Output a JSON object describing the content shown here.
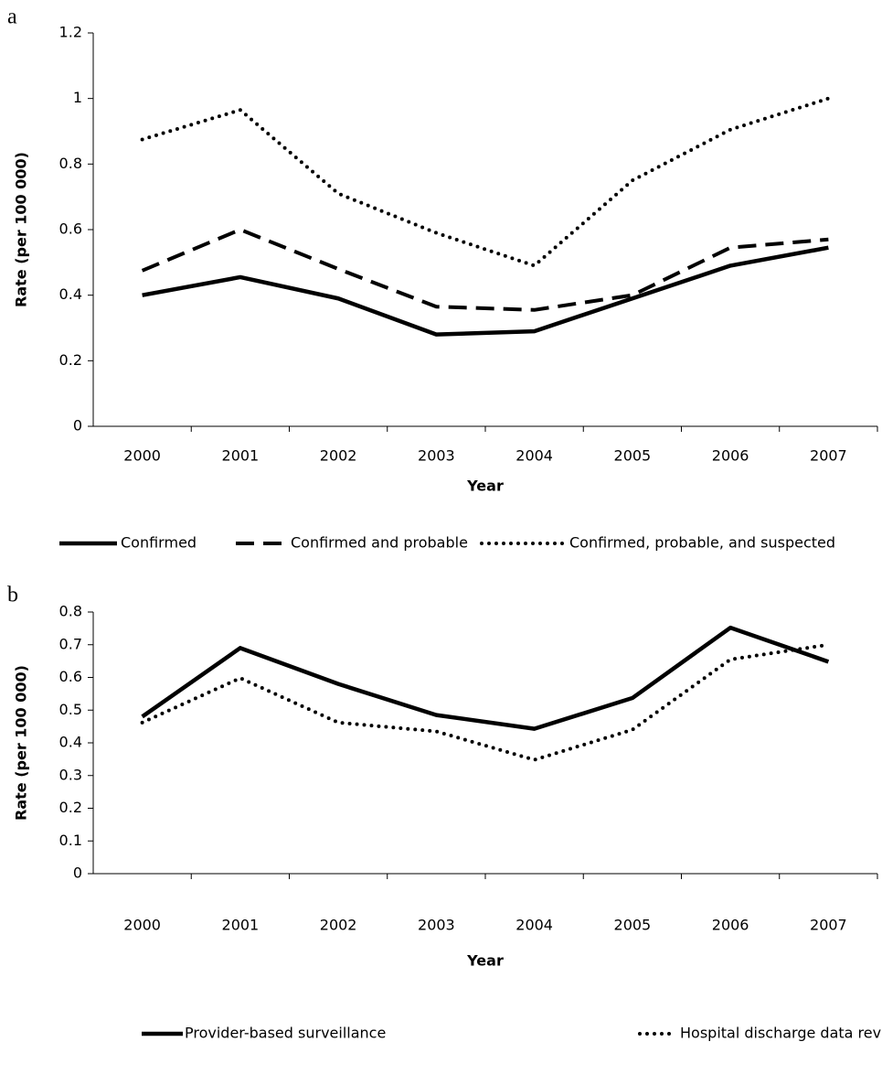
{
  "chart_data": [
    {
      "type": "line",
      "label": "a",
      "x_label": "Year",
      "y_label": "Rate (per 100 000)",
      "categories": [
        "2000",
        "2001",
        "2002",
        "2003",
        "2004",
        "2005",
        "2006",
        "2007"
      ],
      "ylim": [
        0,
        1.2
      ],
      "yticks": [
        0,
        0.2,
        0.4,
        0.6,
        0.8,
        1,
        1.2
      ],
      "series": [
        {
          "name": "Confirmed",
          "color": "#000000",
          "dash": "solid",
          "values": [
            0.4,
            0.455,
            0.39,
            0.28,
            0.29,
            0.39,
            0.49,
            0.545
          ]
        },
        {
          "name": "Confirmed and probable",
          "color": "#000000",
          "dash": "dashed",
          "values": [
            0.475,
            0.6,
            0.48,
            0.365,
            0.355,
            0.4,
            0.545,
            0.57
          ]
        },
        {
          "name": "Confirmed, probable, and suspected",
          "color": "#000000",
          "dash": "dotted",
          "values": [
            0.875,
            0.965,
            0.71,
            0.59,
            0.49,
            0.75,
            0.905,
            1.0
          ]
        }
      ]
    },
    {
      "type": "line",
      "label": "b",
      "x_label": "Year",
      "y_label": "Rate (per 100 000)",
      "categories": [
        "2000",
        "2001",
        "2002",
        "2003",
        "2004",
        "2005",
        "2006",
        "2007"
      ],
      "ylim": [
        0,
        0.8
      ],
      "yticks": [
        0,
        0.1,
        0.2,
        0.3,
        0.4,
        0.5,
        0.6,
        0.7,
        0.8
      ],
      "series": [
        {
          "name": "Provider-based surveillance",
          "color": "#000000",
          "dash": "solid",
          "values": [
            0.48,
            0.69,
            0.58,
            0.485,
            0.443,
            0.537,
            0.752,
            0.648
          ]
        },
        {
          "name": "Hospital discharge data review",
          "color": "#000000",
          "dash": "dotted",
          "values": [
            0.462,
            0.598,
            0.462,
            0.435,
            0.348,
            0.44,
            0.655,
            0.7
          ]
        }
      ]
    }
  ]
}
